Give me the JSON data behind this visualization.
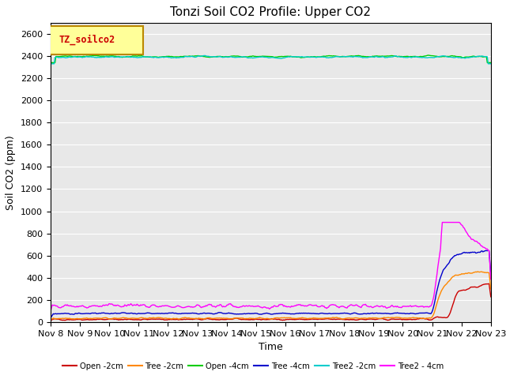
{
  "title": "Tonzi Soil CO2 Profile: Upper CO2",
  "ylabel": "Soil CO2 (ppm)",
  "xlabel": "Time",
  "ylim": [
    0,
    2700
  ],
  "yticks": [
    0,
    200,
    400,
    600,
    800,
    1000,
    1200,
    1400,
    1600,
    1800,
    2000,
    2200,
    2400,
    2600
  ],
  "xtick_labels": [
    "Nov 8",
    "Nov 9",
    "Nov 10",
    "Nov 11",
    "Nov 12",
    "Nov 13",
    "Nov 14",
    "Nov 15",
    "Nov 16",
    "Nov 17",
    "Nov 18",
    "Nov 19",
    "Nov 20",
    "Nov 21",
    "Nov 22",
    "Nov 23"
  ],
  "num_points": 500,
  "legend_label": "TZ_soilco2",
  "legend_bg": "#FFFF99",
  "legend_border": "#BB8800",
  "series": [
    {
      "label": "Open -2cm",
      "color": "#CC0000"
    },
    {
      "label": "Tree -2cm",
      "color": "#FF8800"
    },
    {
      "label": "Open -4cm",
      "color": "#00CC00"
    },
    {
      "label": "Tree -4cm",
      "color": "#0000CC"
    },
    {
      "label": "Tree2 -2cm",
      "color": "#00CCCC"
    },
    {
      "label": "Tree2 - 4cm",
      "color": "#FF00FF"
    }
  ],
  "bg_color": "#E8E8E8",
  "title_fontsize": 11,
  "axis_label_fontsize": 9,
  "tick_fontsize": 8
}
